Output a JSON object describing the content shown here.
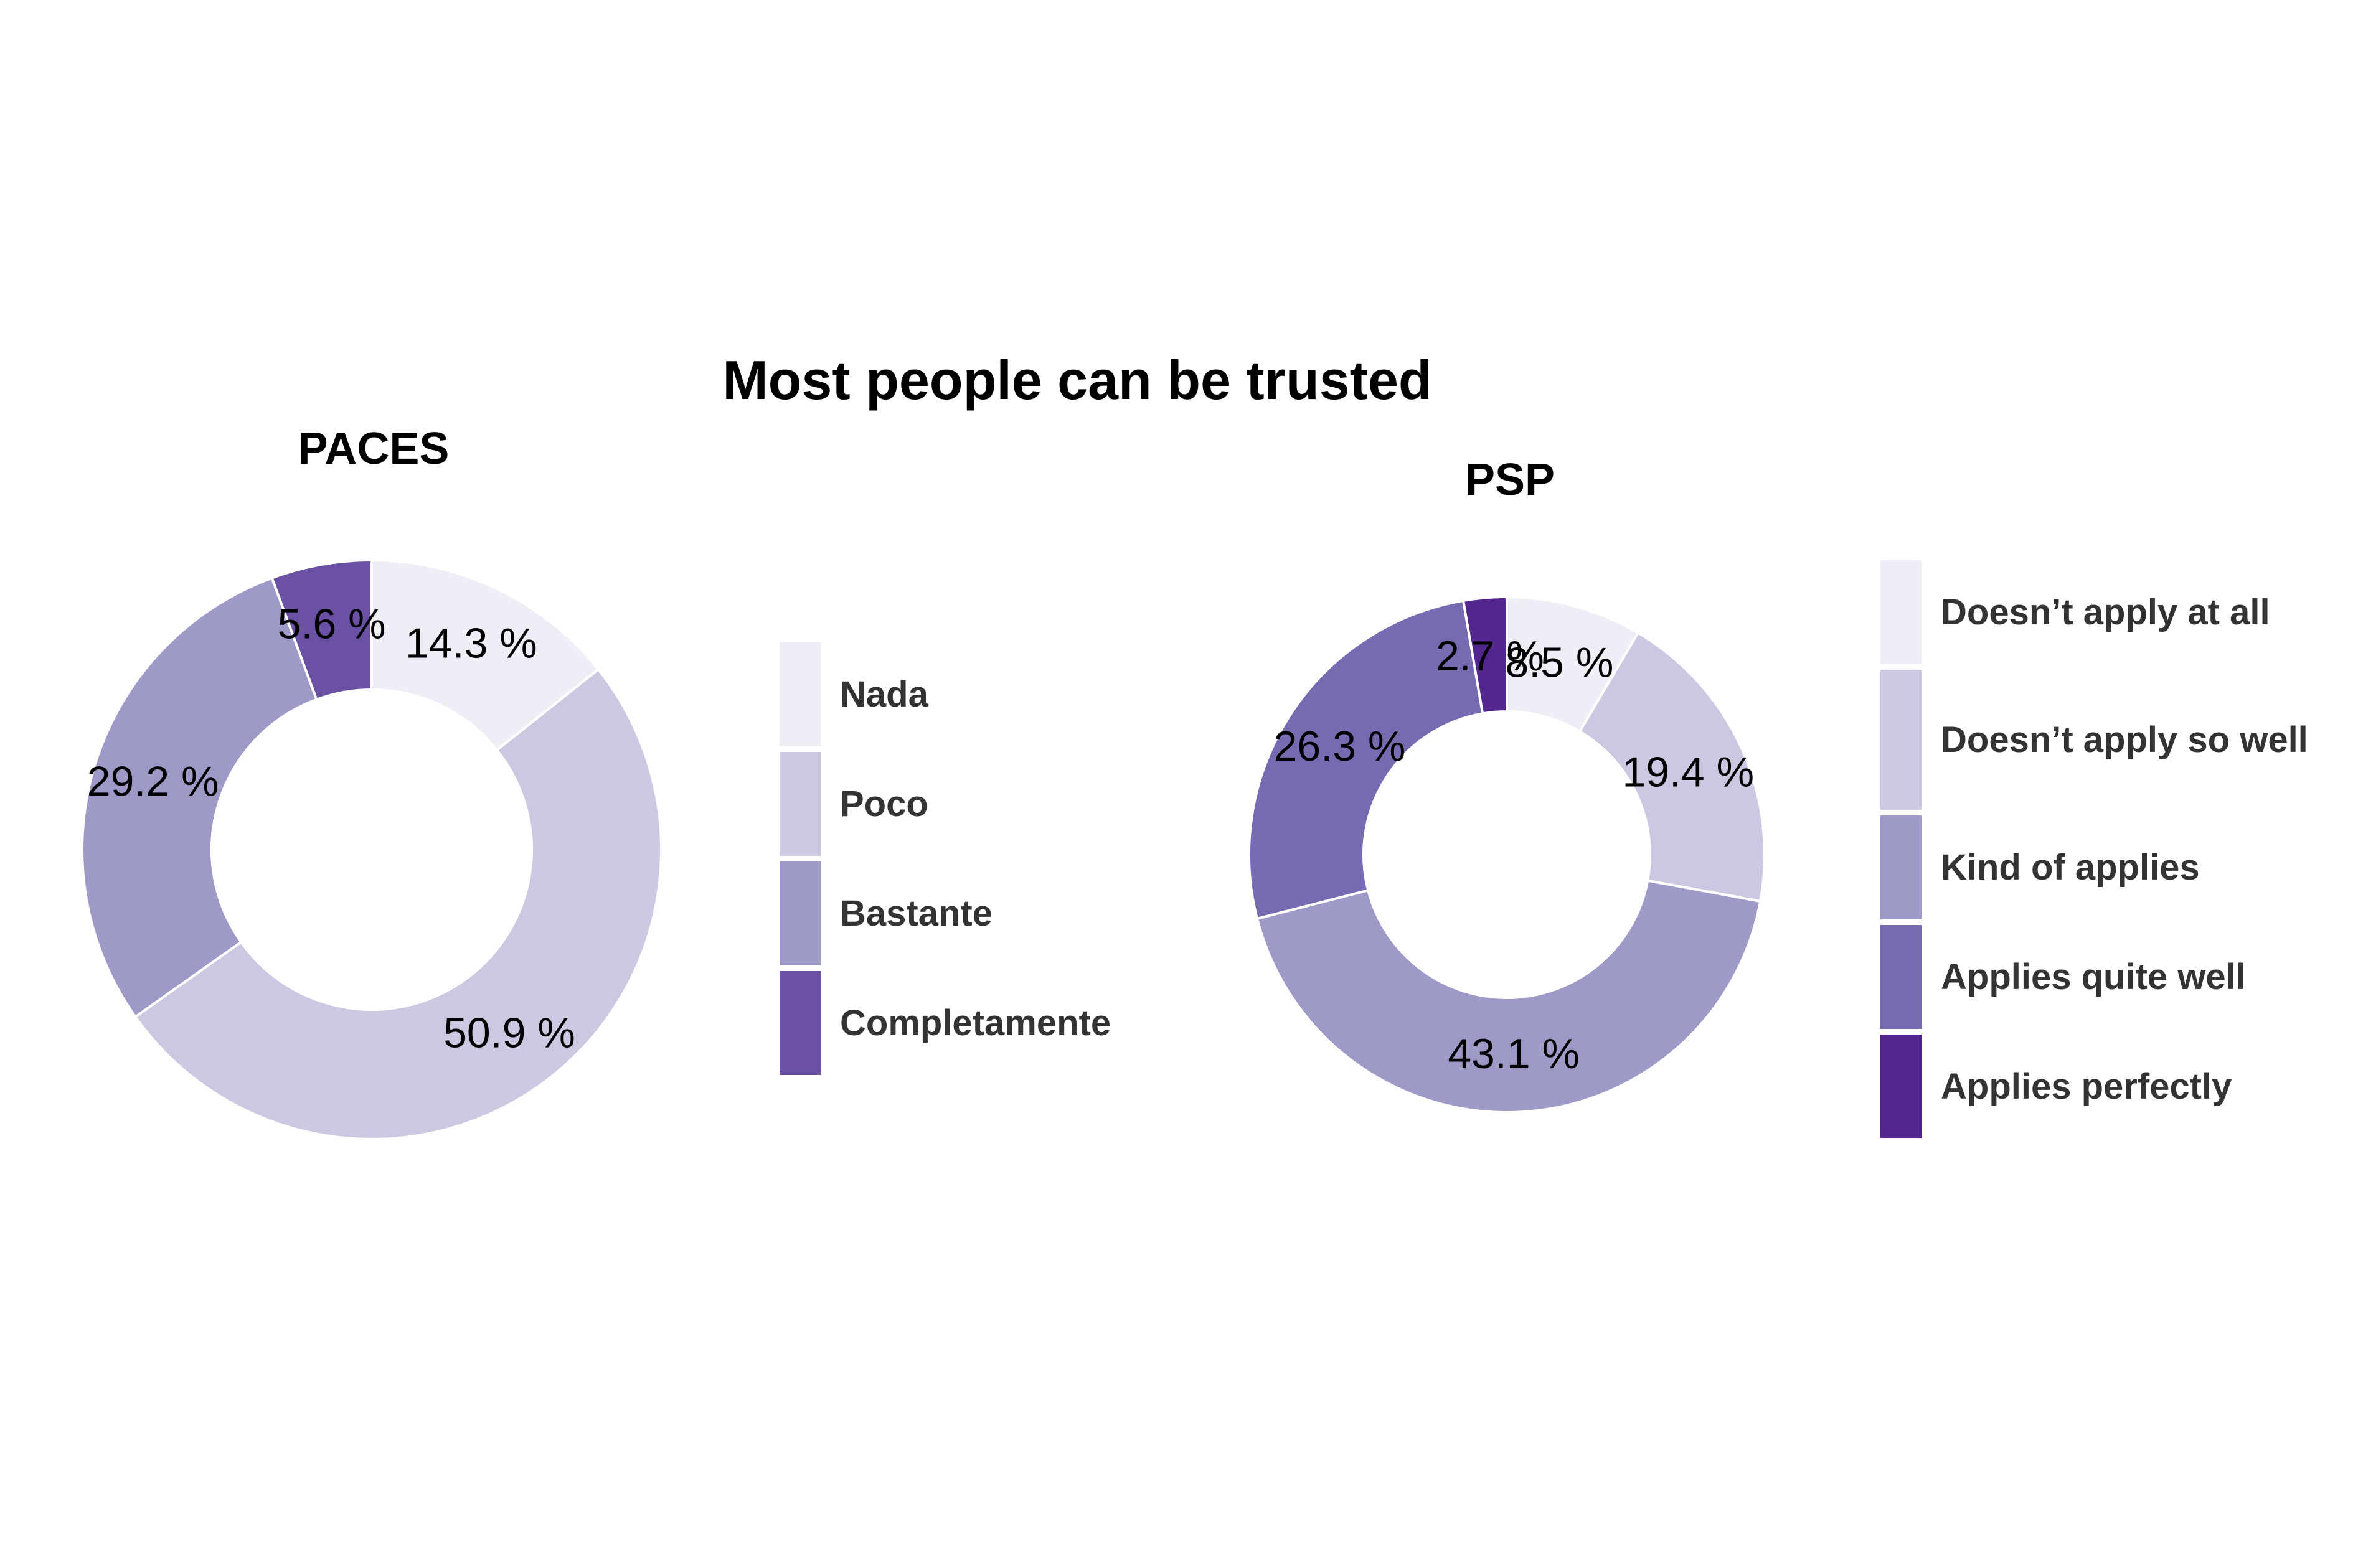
{
  "title": "Most people can be trusted",
  "chart_data": [
    {
      "type": "pie",
      "title": "PACES",
      "categories": [
        "Nada",
        "Poco",
        "Bastante",
        "Completamente"
      ],
      "values": [
        14.3,
        50.9,
        29.2,
        5.6
      ],
      "labels": [
        "14.3 %",
        "50.9 %",
        "29.2 %",
        "5.6 %"
      ],
      "colors": [
        "#efedf5",
        "#cbc9e2",
        "#9e9ac8",
        "#6a51a3"
      ],
      "legend": "right"
    },
    {
      "type": "pie",
      "title": "PSP",
      "categories": [
        "Doesn’t apply at all",
        "Doesn’t apply so well",
        "Kind of applies",
        "Applies quite well",
        "Applies perfectly"
      ],
      "values": [
        8.5,
        19.4,
        43.1,
        26.3,
        2.7
      ],
      "labels": [
        "8.5 %",
        "19.4 %",
        "43.1 %",
        "26.3 %",
        "2.7 %"
      ],
      "colors": [
        "#efedf5",
        "#cbc9e2",
        "#9e9ac8",
        "#756bb1",
        "#54278f"
      ],
      "legend": "right"
    }
  ]
}
